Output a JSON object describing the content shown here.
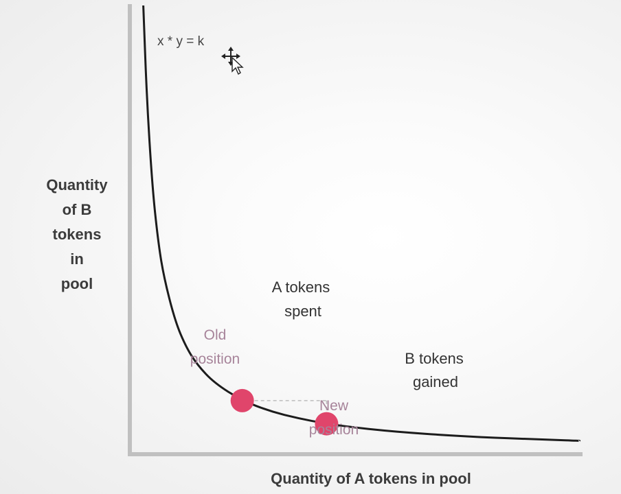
{
  "chart_data": {
    "type": "line",
    "formula": "x * y = k",
    "ylabel_lines": [
      "Quantity",
      "of B",
      "tokens",
      "in",
      "pool"
    ],
    "xlabel": "Quantity of A tokens in pool",
    "series": [
      {
        "x": [
          0.24,
          0.3,
          0.4,
          0.5,
          0.6,
          0.8,
          1.0,
          1.2,
          1.5,
          2.0,
          2.5,
          3.0,
          3.5,
          4.0,
          4.5,
          5.0,
          5.5,
          6.0,
          6.5,
          7.0,
          7.5,
          8.0
        ],
        "y": [
          13.4,
          10.7,
          8.0,
          6.4,
          5.33,
          4.0,
          3.2,
          2.67,
          2.13,
          1.6,
          1.28,
          1.07,
          0.91,
          0.8,
          0.71,
          0.64,
          0.58,
          0.53,
          0.49,
          0.46,
          0.43,
          0.4
        ]
      }
    ],
    "points": [
      {
        "x": 2.0,
        "y": 1.6,
        "label_lines": [
          "Old",
          "position"
        ]
      },
      {
        "x": 3.5,
        "y": 0.91,
        "label_lines": [
          "New",
          "position"
        ]
      }
    ],
    "annotations": {
      "a_spent": [
        "A tokens",
        "spent"
      ],
      "b_gained": [
        "B tokens",
        "gained"
      ]
    },
    "xlim": [
      0,
      8.2
    ],
    "ylim": [
      0,
      13.4
    ],
    "grid": false,
    "colors": {
      "curve": "#1c1c1c",
      "axis": "#c0c0c0",
      "point": "#e0456b",
      "guide": "#bdbdbd",
      "position_label": "#a7849a"
    }
  }
}
